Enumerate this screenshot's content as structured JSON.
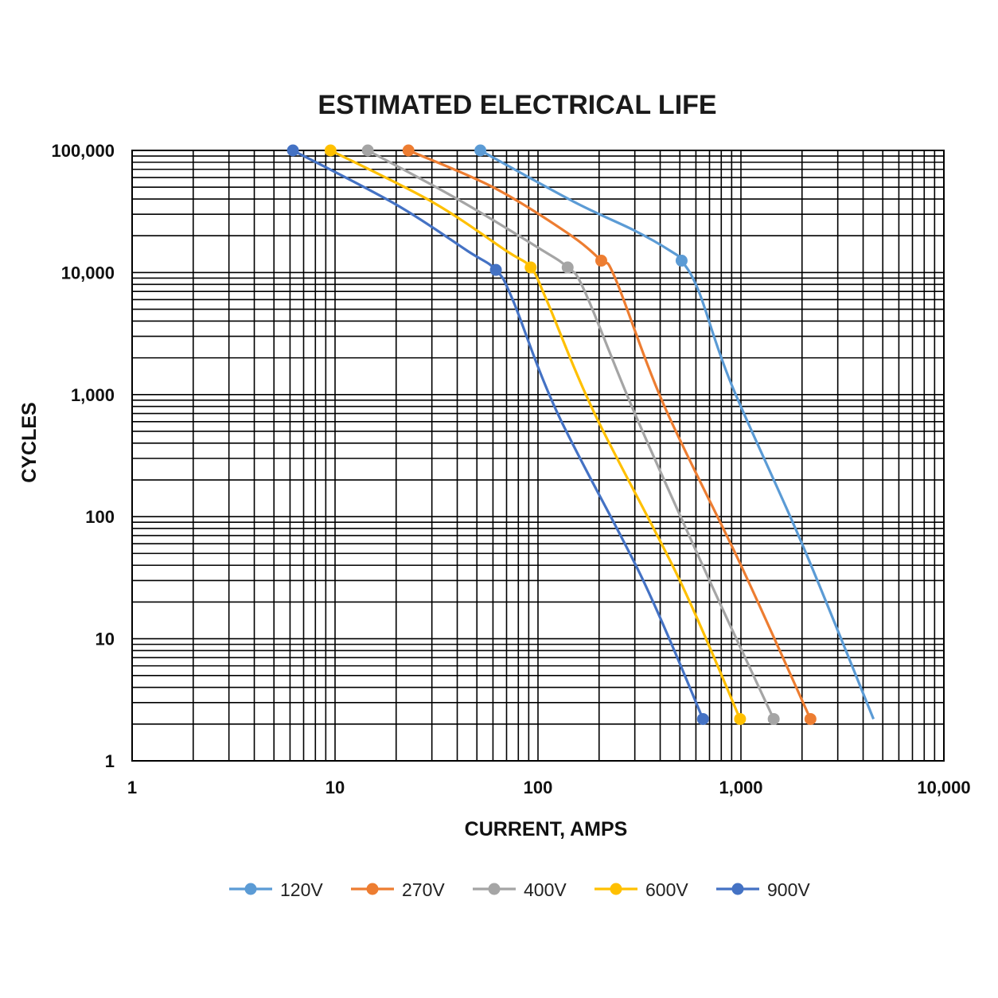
{
  "chart_data": {
    "type": "line",
    "title": "ESTIMATED ELECTRICAL LIFE",
    "xlabel": "CURRENT, AMPS",
    "ylabel": "CYCLES",
    "x_scale": "log",
    "y_scale": "log",
    "xlim": [
      1,
      10000
    ],
    "ylim": [
      1,
      100000
    ],
    "x_ticks": [
      1,
      10,
      100,
      1000,
      10000
    ],
    "y_ticks": [
      1,
      10,
      100,
      1000,
      10000,
      100000
    ],
    "x_tick_labels": [
      "1",
      "10",
      "100",
      "1,000",
      "10,000"
    ],
    "y_tick_labels": [
      "1",
      "10",
      "100",
      "1,000",
      "10,000",
      "100,000"
    ],
    "grid": true,
    "legend_position": "bottom",
    "series": [
      {
        "name": "120V",
        "color": "#5b9bd5",
        "points": [
          [
            52,
            100000
          ],
          [
            510,
            12500
          ]
        ],
        "curve": [
          [
            52,
            100000
          ],
          [
            150,
            38000
          ],
          [
            300,
            22000
          ],
          [
            450,
            15000
          ],
          [
            510,
            12500
          ],
          [
            620,
            7000
          ],
          [
            900,
            1200
          ],
          [
            2000,
            60
          ],
          [
            4500,
            2.2
          ]
        ]
      },
      {
        "name": "270V",
        "color": "#ed7d31",
        "points": [
          [
            23,
            100000
          ],
          [
            205,
            12500
          ],
          [
            2200,
            2.2
          ]
        ],
        "curve": [
          [
            23,
            100000
          ],
          [
            60,
            50000
          ],
          [
            140,
            21000
          ],
          [
            205,
            12500
          ],
          [
            240,
            9000
          ],
          [
            420,
            800
          ],
          [
            1000,
            40
          ],
          [
            2200,
            2.2
          ]
        ]
      },
      {
        "name": "400V",
        "color": "#a5a5a5",
        "points": [
          [
            14.5,
            100000
          ],
          [
            140,
            11000
          ],
          [
            1450,
            2.2
          ]
        ],
        "curve": [
          [
            14.5,
            100000
          ],
          [
            40,
            40000
          ],
          [
            100,
            16000
          ],
          [
            140,
            11000
          ],
          [
            170,
            7000
          ],
          [
            300,
            700
          ],
          [
            700,
            30
          ],
          [
            1450,
            2.2
          ]
        ]
      },
      {
        "name": "600V",
        "color": "#ffc000",
        "points": [
          [
            9.5,
            100000
          ],
          [
            92,
            11000
          ],
          [
            990,
            2.2
          ]
        ],
        "curve": [
          [
            9.5,
            100000
          ],
          [
            30,
            38000
          ],
          [
            70,
            15000
          ],
          [
            92,
            11000
          ],
          [
            110,
            6000
          ],
          [
            190,
            700
          ],
          [
            500,
            30
          ],
          [
            990,
            2.2
          ]
        ]
      },
      {
        "name": "900V",
        "color": "#4472c4",
        "points": [
          [
            6.2,
            100000
          ],
          [
            62,
            10500
          ],
          [
            650,
            2.2
          ]
        ],
        "curve": [
          [
            6.2,
            100000
          ],
          [
            20,
            36000
          ],
          [
            45,
            15000
          ],
          [
            62,
            10500
          ],
          [
            75,
            6000
          ],
          [
            125,
            700
          ],
          [
            330,
            30
          ],
          [
            650,
            2.2
          ]
        ]
      }
    ]
  }
}
